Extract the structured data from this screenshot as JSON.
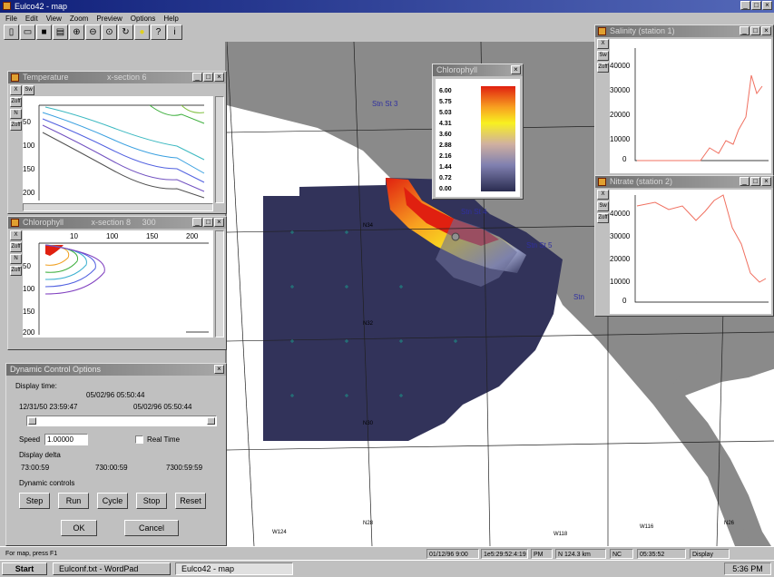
{
  "app": {
    "title": "Eulco42 - map"
  },
  "menu": [
    "File",
    "Edit",
    "View",
    "Zoom",
    "Preview",
    "Options",
    "Help"
  ],
  "toolbar": [
    "new",
    "open",
    "save",
    "print",
    "zoom-in",
    "zoom-out",
    "zoom-fit",
    "refresh",
    "color",
    "help",
    "info"
  ],
  "windows": {
    "temperature": {
      "title": "Temperature",
      "subtitle": "x-section 6",
      "y_ticks": [
        "50",
        "100",
        "150",
        "200"
      ],
      "x_ticks": [
        "",
        "",
        "",
        ""
      ]
    },
    "chlorophyll_section": {
      "title": "Chlorophyll",
      "subtitle": "x-section 8",
      "badge": "300",
      "x_ticks": [
        "10",
        "100",
        "150",
        "200"
      ],
      "y_ticks": [
        "50",
        "100",
        "150",
        "200"
      ]
    },
    "chlorophyll_legend": {
      "title": "Chlorophyll",
      "values": [
        "6.00",
        "5.75",
        "5.03",
        "4.31",
        "3.60",
        "2.88",
        "2.16",
        "1.44",
        "0.72",
        "0.00"
      ]
    },
    "station_top": {
      "title": "Salinity (station 1)",
      "y_ticks": [
        "40000",
        "30000",
        "20000",
        "10000",
        "0"
      ]
    },
    "station_bottom": {
      "title": "Nitrate (station 2)",
      "y_ticks": [
        "40000",
        "30000",
        "20000",
        "10000",
        "0"
      ]
    }
  },
  "dynamic": {
    "title": "Dynamic Control Options",
    "display_time_label": "Display time:",
    "display_time_value": "05/02/96 05:50:44",
    "start_time": "12/31/50 23:59:47",
    "end_time": "05/02/96 05:50:44",
    "speed_label": "Speed",
    "speed_value": "1.00000",
    "realtime_label": "Real Time",
    "delta_label": "Display delta",
    "delta_values": [
      "73:00:59",
      "730:00:59",
      "7300:59:59"
    ],
    "controls_label": "Dynamic controls",
    "buttons": [
      "Step",
      "Run",
      "Cycle",
      "Stop",
      "Reset"
    ],
    "ok": "OK",
    "cancel": "Cancel"
  },
  "map": {
    "labels": [
      "Stn St 3",
      "Stn St 4",
      "Stn St 5",
      "Stn"
    ],
    "grid_labels": [
      "W124",
      "N34",
      "N32",
      "N30",
      "N28",
      "W118",
      "W116",
      "N26"
    ]
  },
  "status": {
    "left": "For map, press F1",
    "fields": [
      "01/12/96 9:00",
      "1e5:29:52:4:19",
      "PM",
      "N 124.3 km",
      "NC",
      "05:35:52",
      "Display"
    ]
  },
  "taskbar": {
    "start": "Start",
    "tasks": [
      "Eulconf.txt - WordPad",
      "Eulco42 - map"
    ],
    "clock": "5:36 PM"
  },
  "colors": {
    "title_active": "#10207a",
    "land": "#8a8a8a",
    "ocean": "#ffffff",
    "data_dark": "#32335a",
    "accent_red": "#e02010",
    "accent_yellow": "#f8e020"
  }
}
